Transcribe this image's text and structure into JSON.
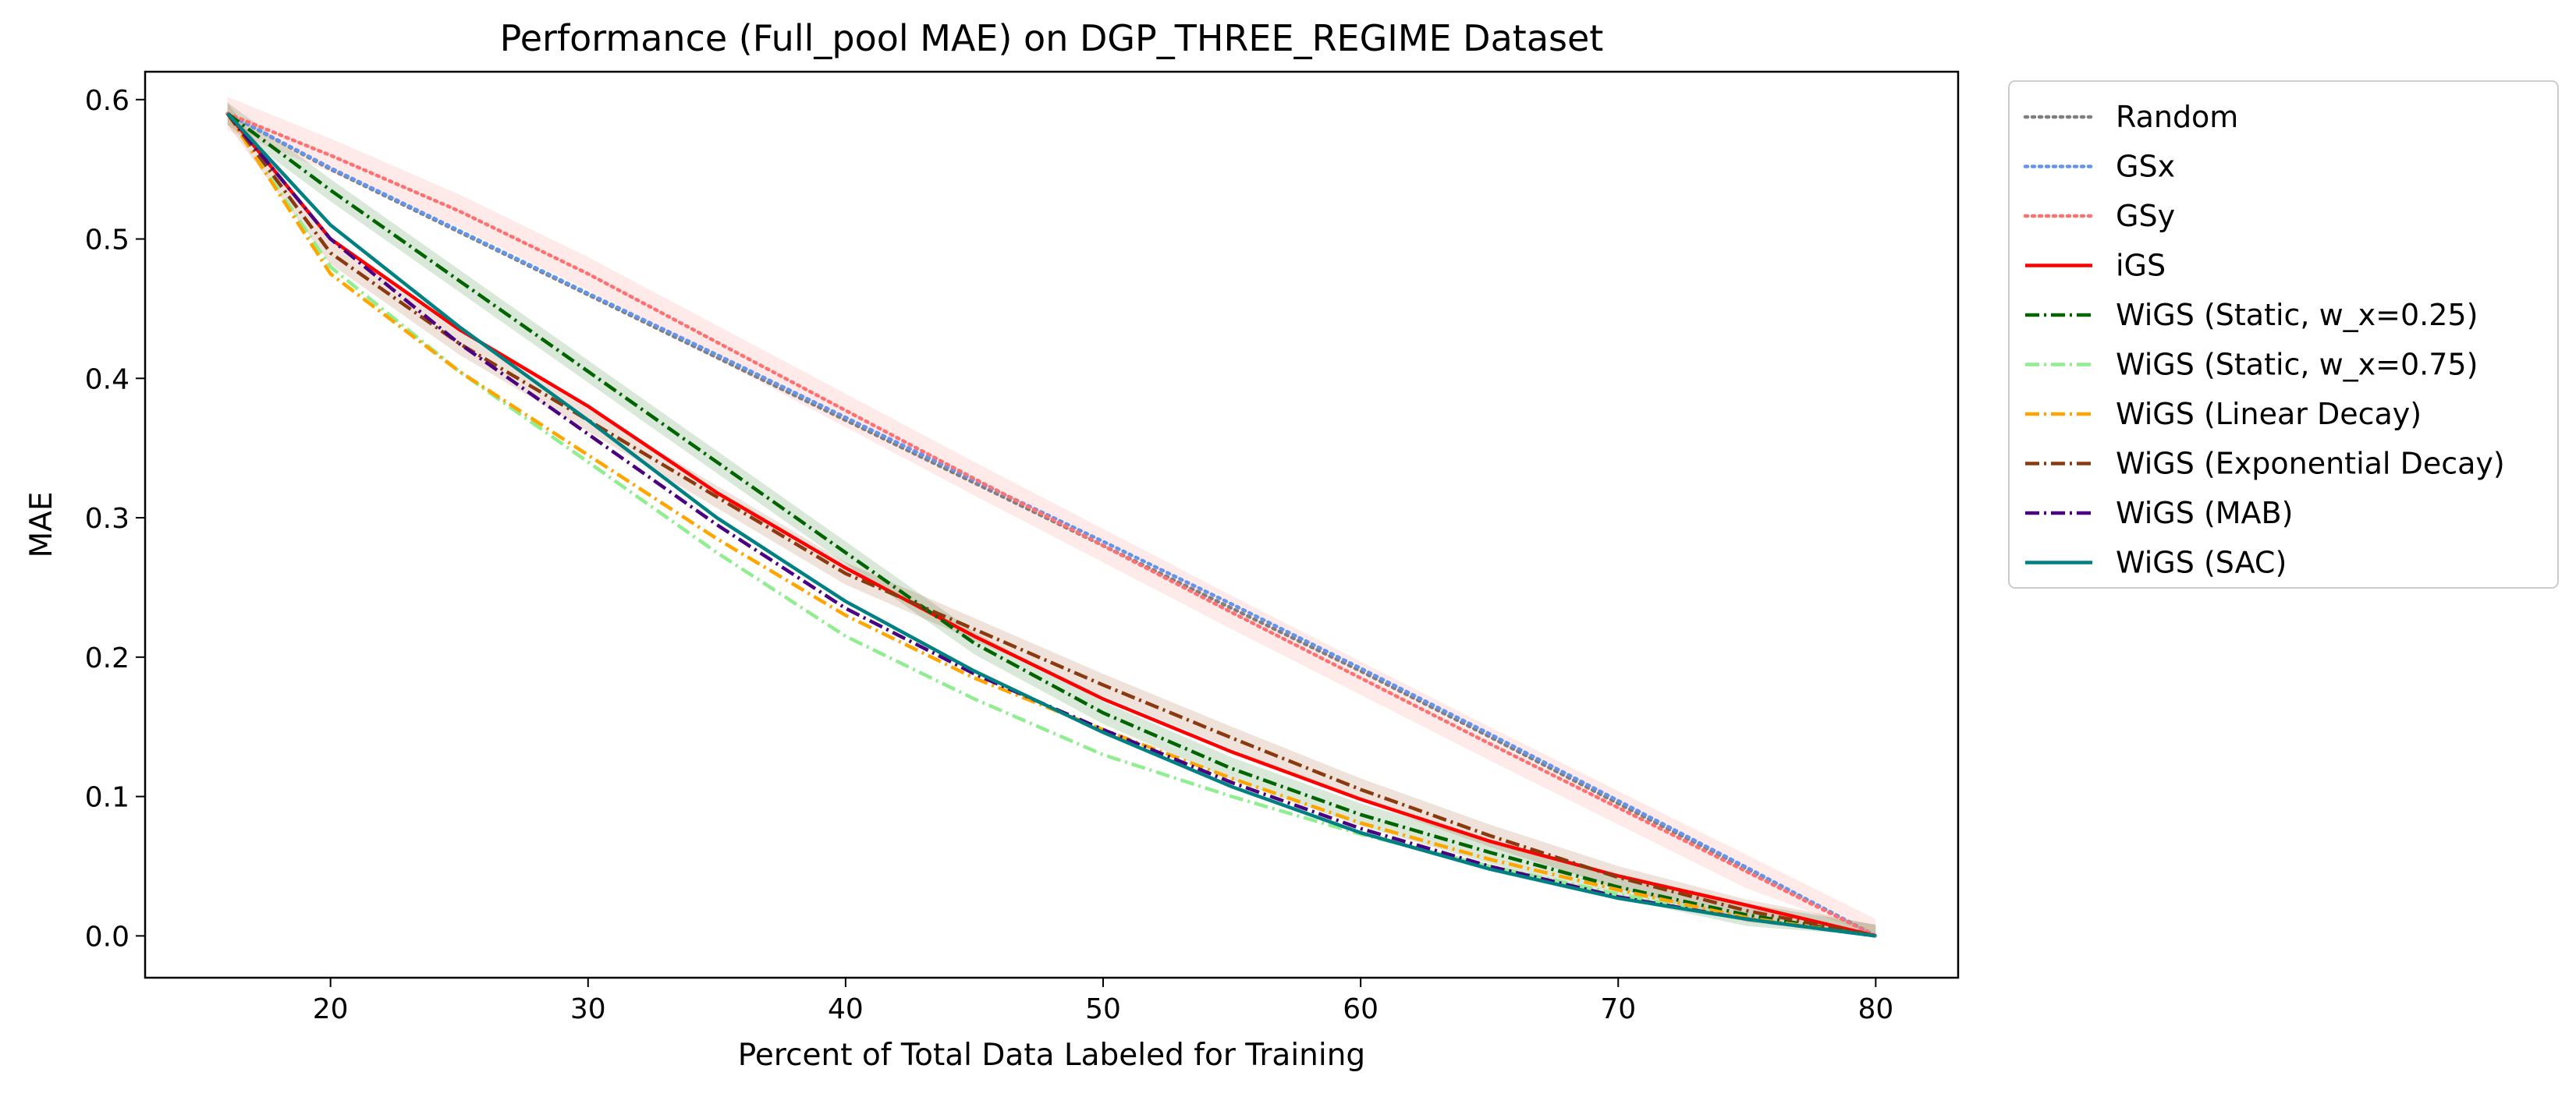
{
  "chart_data": {
    "type": "line",
    "title": "Performance (Full_pool MAE) on DGP_THREE_REGIME Dataset",
    "xlabel": "Percent of Total Data Labeled for Training",
    "ylabel": "MAE",
    "xlim": [
      12.8,
      83.2
    ],
    "ylim": [
      -0.03,
      0.62
    ],
    "xticks": [
      20,
      30,
      40,
      50,
      60,
      70,
      80
    ],
    "yticks": [
      0.0,
      0.1,
      0.2,
      0.3,
      0.4,
      0.5,
      0.6
    ],
    "grid": false,
    "legend_placement": "outside upper right",
    "x": [
      16,
      20,
      25,
      30,
      35,
      40,
      45,
      50,
      55,
      60,
      65,
      70,
      75,
      80
    ],
    "series": [
      {
        "name": "Random",
        "color": "#7f7f7f",
        "style": "dotted",
        "values": [
          0.59,
          0.55,
          0.505,
          0.46,
          0.415,
          0.37,
          0.325,
          0.28,
          0.235,
          0.19,
          0.143,
          0.095,
          0.048,
          0.0
        ]
      },
      {
        "name": "GSx",
        "color": "#6495ed",
        "style": "dotted",
        "values": [
          0.59,
          0.551,
          0.506,
          0.461,
          0.417,
          0.372,
          0.327,
          0.283,
          0.238,
          0.192,
          0.145,
          0.097,
          0.049,
          0.0
        ]
      },
      {
        "name": "GSy",
        "color": "#ff7070",
        "style": "dotted",
        "band": 0.012,
        "values": [
          0.59,
          0.56,
          0.52,
          0.475,
          0.426,
          0.377,
          0.328,
          0.28,
          0.232,
          0.185,
          0.138,
          0.092,
          0.046,
          0.0
        ]
      },
      {
        "name": "iGS",
        "color": "#ff0000",
        "style": "solid",
        "values": [
          0.59,
          0.5,
          0.435,
          0.38,
          0.318,
          0.264,
          0.215,
          0.17,
          0.132,
          0.098,
          0.068,
          0.043,
          0.022,
          0.0
        ]
      },
      {
        "name": "WiGS (Static, w_x=0.25)",
        "color": "#006400",
        "style": "dashdot",
        "band": 0.008,
        "values": [
          0.59,
          0.535,
          0.47,
          0.405,
          0.34,
          0.275,
          0.21,
          0.16,
          0.12,
          0.087,
          0.06,
          0.035,
          0.015,
          0.0
        ]
      },
      {
        "name": "WiGS (Static, w_x=0.75)",
        "color": "#90ee90",
        "style": "dashdot",
        "values": [
          0.59,
          0.48,
          0.405,
          0.34,
          0.275,
          0.215,
          0.17,
          0.13,
          0.1,
          0.073,
          0.05,
          0.03,
          0.012,
          0.0
        ]
      },
      {
        "name": "WiGS (Linear Decay)",
        "color": "#ffa500",
        "style": "dashdot",
        "values": [
          0.59,
          0.475,
          0.405,
          0.345,
          0.285,
          0.23,
          0.185,
          0.148,
          0.113,
          0.081,
          0.055,
          0.033,
          0.013,
          0.0
        ]
      },
      {
        "name": "WiGS (Exponential Decay)",
        "color": "#8b3a0f",
        "style": "dashdot",
        "band": 0.008,
        "values": [
          0.59,
          0.49,
          0.425,
          0.37,
          0.315,
          0.26,
          0.22,
          0.18,
          0.142,
          0.105,
          0.072,
          0.042,
          0.018,
          0.0
        ]
      },
      {
        "name": "WiGS (MAB)",
        "color": "#4b0082",
        "style": "dashdot",
        "values": [
          0.59,
          0.5,
          0.425,
          0.36,
          0.295,
          0.235,
          0.188,
          0.148,
          0.11,
          0.077,
          0.05,
          0.028,
          0.012,
          0.0
        ]
      },
      {
        "name": "WiGS (SAC)",
        "color": "#008080",
        "style": "solid",
        "values": [
          0.59,
          0.51,
          0.437,
          0.37,
          0.3,
          0.24,
          0.19,
          0.146,
          0.107,
          0.074,
          0.048,
          0.027,
          0.012,
          0.0
        ]
      }
    ]
  }
}
